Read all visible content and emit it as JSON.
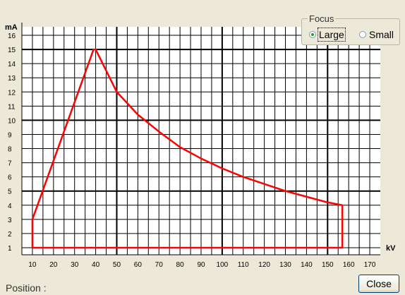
{
  "chart_data": {
    "type": "line",
    "ylabel": "mA",
    "xlabel": "kV",
    "xlim": [
      5,
      175
    ],
    "ylim": [
      0.5,
      16.6
    ],
    "x_ticks": [
      10,
      20,
      30,
      40,
      50,
      60,
      70,
      80,
      90,
      100,
      110,
      120,
      130,
      140,
      150,
      160,
      170
    ],
    "y_ticks": [
      1,
      2,
      3,
      4,
      5,
      6,
      7,
      8,
      9,
      10,
      11,
      12,
      13,
      14,
      15,
      16
    ],
    "grid": true,
    "line_color": "#ff0000",
    "series": [
      {
        "x": [
          10,
          10,
          39,
          40,
          45,
          50,
          60,
          70,
          80,
          90,
          100,
          110,
          120,
          130,
          140,
          150,
          157,
          157,
          10
        ],
        "y": [
          1,
          3,
          15,
          15,
          13.5,
          12,
          10.4,
          9.2,
          8.1,
          7.3,
          6.6,
          6.0,
          5.5,
          5.0,
          4.6,
          4.2,
          4.0,
          1,
          1
        ]
      }
    ]
  },
  "focus": {
    "legend": "Focus",
    "options": [
      {
        "label": "Large",
        "selected": true
      },
      {
        "label": "Small",
        "selected": false
      }
    ]
  },
  "position_label": "Position :",
  "close_label": "Close"
}
